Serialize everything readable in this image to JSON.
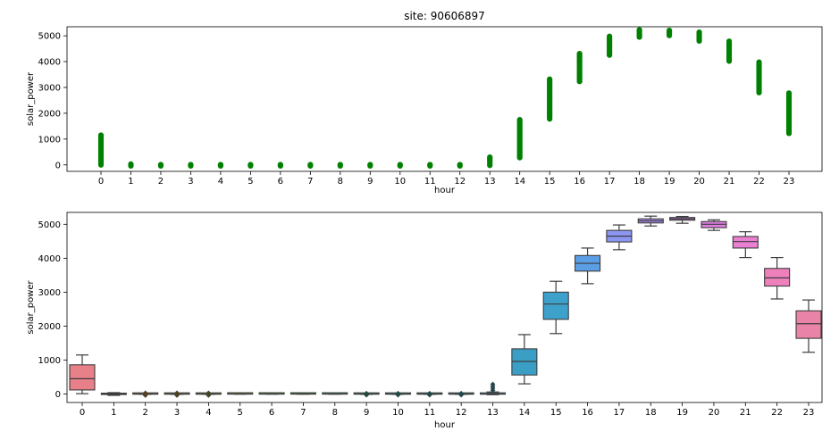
{
  "chart_data": [
    {
      "type": "scatter",
      "title": "site: 90606897",
      "xlabel": "hour",
      "ylabel": "solar_power",
      "categories": [
        "0",
        "1",
        "2",
        "3",
        "4",
        "5",
        "6",
        "7",
        "8",
        "9",
        "10",
        "11",
        "12",
        "13",
        "14",
        "15",
        "16",
        "17",
        "18",
        "19",
        "20",
        "21",
        "22",
        "23"
      ],
      "ylim": [
        -250,
        5350
      ],
      "yticks": [
        0,
        1000,
        2000,
        3000,
        4000,
        5000
      ],
      "marker_color": "#008000",
      "series": [
        {
          "ranges": [
            [
              0,
              1150
            ],
            [
              -40,
              30
            ],
            [
              -40,
              10
            ],
            [
              -40,
              10
            ],
            [
              -40,
              10
            ],
            [
              -40,
              10
            ],
            [
              -40,
              10
            ],
            [
              -40,
              10
            ],
            [
              -40,
              10
            ],
            [
              -40,
              10
            ],
            [
              -40,
              10
            ],
            [
              -40,
              10
            ],
            [
              -40,
              10
            ],
            [
              -20,
              300
            ],
            [
              280,
              1750
            ],
            [
              1780,
              3320
            ],
            [
              3230,
              4310
            ],
            [
              4250,
              4980
            ],
            [
              4950,
              5230
            ],
            [
              5010,
              5210
            ],
            [
              4800,
              5140
            ],
            [
              4020,
              4790
            ],
            [
              2800,
              3980
            ],
            [
              1220,
              2780
            ]
          ]
        }
      ],
      "grid": false
    },
    {
      "type": "box",
      "xlabel": "hour",
      "ylabel": "solar_power",
      "categories": [
        "0",
        "1",
        "2",
        "3",
        "4",
        "5",
        "6",
        "7",
        "8",
        "9",
        "10",
        "11",
        "12",
        "13",
        "14",
        "15",
        "16",
        "17",
        "18",
        "19",
        "20",
        "21",
        "22",
        "23"
      ],
      "ylim": [
        -250,
        5350
      ],
      "yticks": [
        0,
        1000,
        2000,
        3000,
        4000,
        5000
      ],
      "grid": false,
      "boxes": [
        {
          "whislo": 10,
          "q1": 120,
          "med": 450,
          "q3": 860,
          "whishi": 1150,
          "color": "#e8808a"
        },
        {
          "whislo": -40,
          "q1": -15,
          "med": 0,
          "q3": 15,
          "whishi": 40,
          "color": "#e5834c"
        },
        {
          "whislo": -10,
          "q1": -5,
          "med": 0,
          "q3": 5,
          "whishi": 10,
          "color": "#c98e3a",
          "fliers": [
            -40,
            30
          ]
        },
        {
          "whislo": -10,
          "q1": -5,
          "med": 0,
          "q3": 5,
          "whishi": 10,
          "color": "#b69638",
          "fliers": [
            -40,
            30
          ]
        },
        {
          "whislo": -10,
          "q1": -5,
          "med": 0,
          "q3": 5,
          "whishi": 10,
          "color": "#a39d38",
          "fliers": [
            -40,
            30
          ]
        },
        {
          "whislo": -5,
          "q1": -2,
          "med": 0,
          "q3": 2,
          "whishi": 5,
          "color": "#8ba336"
        },
        {
          "whislo": -5,
          "q1": -2,
          "med": 0,
          "q3": 2,
          "whishi": 5,
          "color": "#68aa39"
        },
        {
          "whislo": -5,
          "q1": -2,
          "med": 0,
          "q3": 2,
          "whishi": 5,
          "color": "#3aae4b"
        },
        {
          "whislo": -5,
          "q1": -2,
          "med": 0,
          "q3": 2,
          "whishi": 5,
          "color": "#3bad77"
        },
        {
          "whislo": -10,
          "q1": -5,
          "med": 0,
          "q3": 5,
          "whishi": 10,
          "color": "#3aab8e",
          "fliers": [
            -30,
            20
          ]
        },
        {
          "whislo": -10,
          "q1": -5,
          "med": 0,
          "q3": 5,
          "whishi": 10,
          "color": "#38aa9d",
          "fliers": [
            -30,
            20
          ]
        },
        {
          "whislo": -10,
          "q1": -5,
          "med": 0,
          "q3": 5,
          "whishi": 10,
          "color": "#39a8aa",
          "fliers": [
            -30,
            20
          ]
        },
        {
          "whislo": -10,
          "q1": -5,
          "med": 0,
          "q3": 5,
          "whishi": 10,
          "color": "#3ba6b6",
          "fliers": [
            -30,
            20
          ]
        },
        {
          "whislo": -20,
          "q1": -5,
          "med": 0,
          "q3": 20,
          "whishi": 60,
          "color": "#3ea3c2",
          "fliers": [
            110,
            170,
            230,
            290
          ]
        },
        {
          "whislo": 300,
          "q1": 560,
          "med": 960,
          "q3": 1330,
          "whishi": 1750,
          "color": "#3b9fc5"
        },
        {
          "whislo": 1780,
          "q1": 2200,
          "med": 2650,
          "q3": 3000,
          "whishi": 3320,
          "color": "#3ea1cc"
        },
        {
          "whislo": 3250,
          "q1": 3620,
          "med": 3850,
          "q3": 4080,
          "whishi": 4300,
          "color": "#5c9ee6"
        },
        {
          "whislo": 4250,
          "q1": 4480,
          "med": 4650,
          "q3": 4820,
          "whishi": 4980,
          "color": "#8c96f2"
        },
        {
          "whislo": 4950,
          "q1": 5040,
          "med": 5100,
          "q3": 5160,
          "whishi": 5240,
          "color": "#ad8ef1"
        },
        {
          "whislo": 5030,
          "q1": 5120,
          "med": 5160,
          "q3": 5200,
          "whishi": 5230,
          "color": "#c983ef"
        },
        {
          "whislo": 4820,
          "q1": 4900,
          "med": 5000,
          "q3": 5080,
          "whishi": 5130,
          "color": "#e07de4"
        },
        {
          "whislo": 4020,
          "q1": 4300,
          "med": 4490,
          "q3": 4640,
          "whishi": 4780,
          "color": "#eb7fd2"
        },
        {
          "whislo": 2800,
          "q1": 3180,
          "med": 3420,
          "q3": 3700,
          "whishi": 4020,
          "color": "#ee80bc"
        },
        {
          "whislo": 1230,
          "q1": 1640,
          "med": 2070,
          "q3": 2450,
          "whishi": 2770,
          "color": "#ea83a8"
        }
      ]
    }
  ]
}
